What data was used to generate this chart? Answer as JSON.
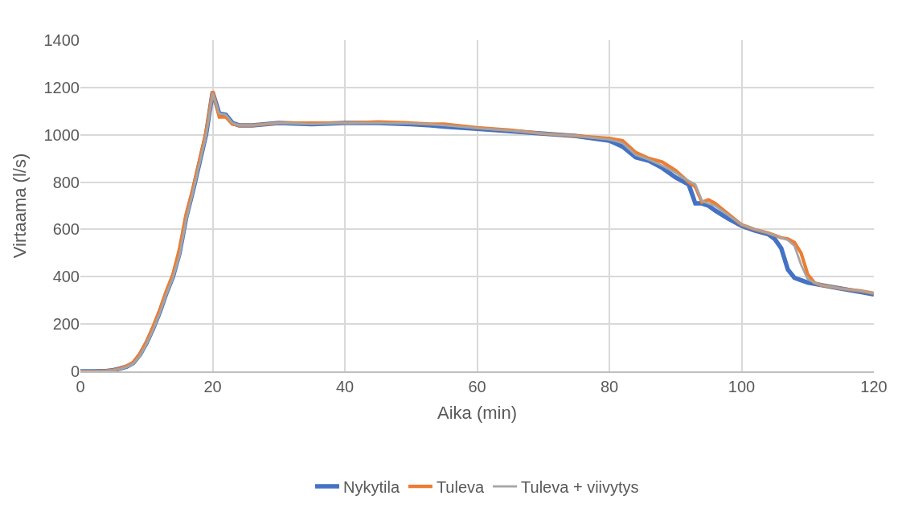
{
  "chart_data": {
    "type": "line",
    "xlabel": "Aika (min)",
    "ylabel": "Virtaama (l/s)",
    "x": [
      0,
      2,
      4,
      5,
      6,
      7,
      8,
      9,
      10,
      11,
      12,
      13,
      14,
      15,
      16,
      17,
      18,
      19,
      20,
      21,
      22,
      23,
      24,
      26,
      28,
      30,
      35,
      40,
      45,
      50,
      53,
      55,
      60,
      65,
      70,
      75,
      80,
      82,
      84,
      86,
      88,
      90,
      91,
      92,
      93,
      94,
      95,
      96,
      98,
      100,
      102,
      104,
      105,
      106,
      107,
      108,
      109,
      110,
      111,
      112,
      115,
      118,
      120
    ],
    "series": [
      {
        "name": "Nykytila",
        "color": "#4472c4",
        "values": [
          0,
          0,
          2,
          5,
          12,
          20,
          35,
          70,
          120,
          180,
          250,
          330,
          400,
          500,
          650,
          760,
          880,
          1000,
          1180,
          1090,
          1085,
          1050,
          1040,
          1040,
          1045,
          1050,
          1045,
          1050,
          1050,
          1045,
          1040,
          1035,
          1025,
          1015,
          1005,
          995,
          975,
          950,
          905,
          890,
          860,
          820,
          805,
          790,
          710,
          710,
          700,
          680,
          645,
          615,
          595,
          580,
          560,
          520,
          430,
          395,
          385,
          375,
          370,
          365,
          350,
          335,
          325
        ]
      },
      {
        "name": "Tuleva",
        "color": "#ed7d31",
        "values": [
          0,
          0,
          2,
          5,
          12,
          22,
          38,
          75,
          125,
          190,
          260,
          340,
          410,
          520,
          665,
          770,
          890,
          1010,
          1185,
          1075,
          1075,
          1045,
          1040,
          1040,
          1045,
          1050,
          1050,
          1050,
          1055,
          1050,
          1045,
          1045,
          1030,
          1020,
          1005,
          995,
          985,
          975,
          925,
          900,
          885,
          850,
          825,
          800,
          780,
          715,
          725,
          710,
          665,
          620,
          600,
          585,
          575,
          565,
          560,
          545,
          500,
          410,
          375,
          365,
          350,
          340,
          330
        ]
      },
      {
        "name": "Tuleva + viivytys",
        "color": "#a5a5a5",
        "values": [
          0,
          0,
          2,
          5,
          10,
          18,
          32,
          65,
          115,
          175,
          245,
          325,
          395,
          490,
          640,
          755,
          875,
          995,
          1175,
          1090,
          1085,
          1050,
          1040,
          1040,
          1045,
          1050,
          1045,
          1050,
          1050,
          1048,
          1045,
          1040,
          1028,
          1018,
          1005,
          995,
          980,
          965,
          915,
          895,
          870,
          840,
          820,
          805,
          790,
          720,
          710,
          700,
          660,
          620,
          600,
          585,
          575,
          565,
          555,
          530,
          450,
          390,
          375,
          365,
          350,
          340,
          330
        ]
      }
    ],
    "xlim": [
      0,
      120
    ],
    "xticks": [
      0,
      20,
      40,
      60,
      80,
      100,
      120
    ],
    "ylim": [
      0,
      1400
    ],
    "yticks": [
      0,
      200,
      400,
      600,
      800,
      1000,
      1200,
      1400
    ],
    "grid": true,
    "legend": "bottom",
    "marker": "none",
    "line_style": "solid"
  }
}
